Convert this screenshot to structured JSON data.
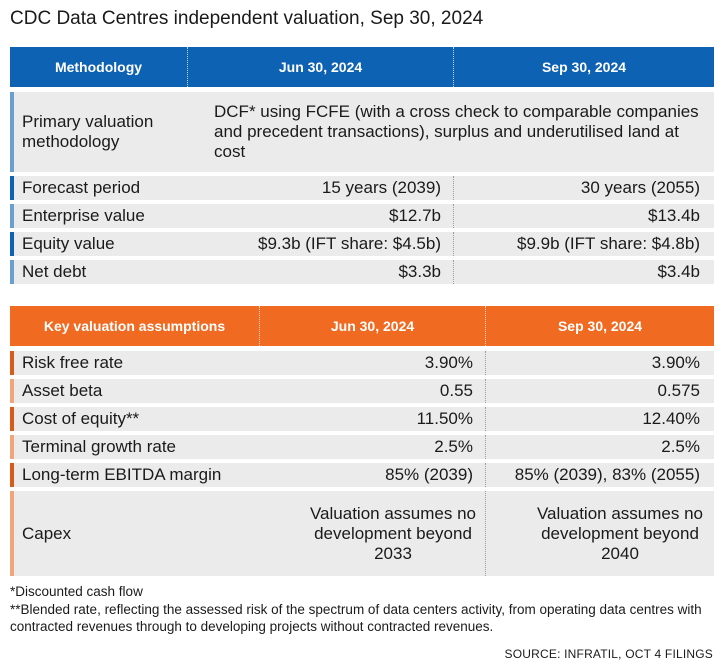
{
  "title": "CDC Data Centres independent valuation, Sep 30, 2024",
  "table1": {
    "headers": [
      "Methodology",
      "Jun 30, 2024",
      "Sep 30, 2024"
    ],
    "primary": {
      "label": "Primary valuation methodology",
      "value": "DCF* using FCFE (with a cross check to comparable companies and precedent transactions), surplus and underutilised land at cost"
    },
    "rows": [
      {
        "label": "Forecast period",
        "jun": "15 years (2039)",
        "sep": "30 years (2055)"
      },
      {
        "label": "Enterprise value",
        "jun": "$12.7b",
        "sep": "$13.4b"
      },
      {
        "label": "Equity value",
        "jun": "$9.3b (IFT share: $4.5b)",
        "sep": "$9.9b (IFT share: $4.8b)"
      },
      {
        "label": "Net debt",
        "jun": "$3.3b",
        "sep": "$3.4b"
      }
    ]
  },
  "table2": {
    "headers": [
      "Key valuation assumptions",
      "Jun 30, 2024",
      "Sep 30, 2024"
    ],
    "rows": [
      {
        "label": "Risk free rate",
        "jun": "3.90%",
        "sep": "3.90%"
      },
      {
        "label": "Asset beta",
        "jun": "0.55",
        "sep": "0.575"
      },
      {
        "label": "Cost of equity**",
        "jun": "11.50%",
        "sep": "12.40%"
      },
      {
        "label": "Terminal growth rate",
        "jun": "2.5%",
        "sep": "2.5%"
      },
      {
        "label": "Long-term EBITDA margin",
        "jun": "85% (2039)",
        "sep": "85% (2039), 83% (2055)"
      }
    ],
    "capex": {
      "label": "Capex",
      "jun": "Valuation assumes no development beyond 2033",
      "sep": "Valuation assumes no development beyond 2040"
    }
  },
  "footnotes": {
    "f1": "*Discounted cash flow",
    "f2": "**Blended rate, reflecting the assessed risk of the spectrum of data centers activity, from operating data centres with contracted revenues through to developing projects without contracted revenues."
  },
  "source": "SOURCE: INFRATIL, OCT 4 FILINGS",
  "colors": {
    "blue_header": "#0e62b3",
    "orange_header": "#f06a22",
    "row_bg": "#ebebeb"
  }
}
